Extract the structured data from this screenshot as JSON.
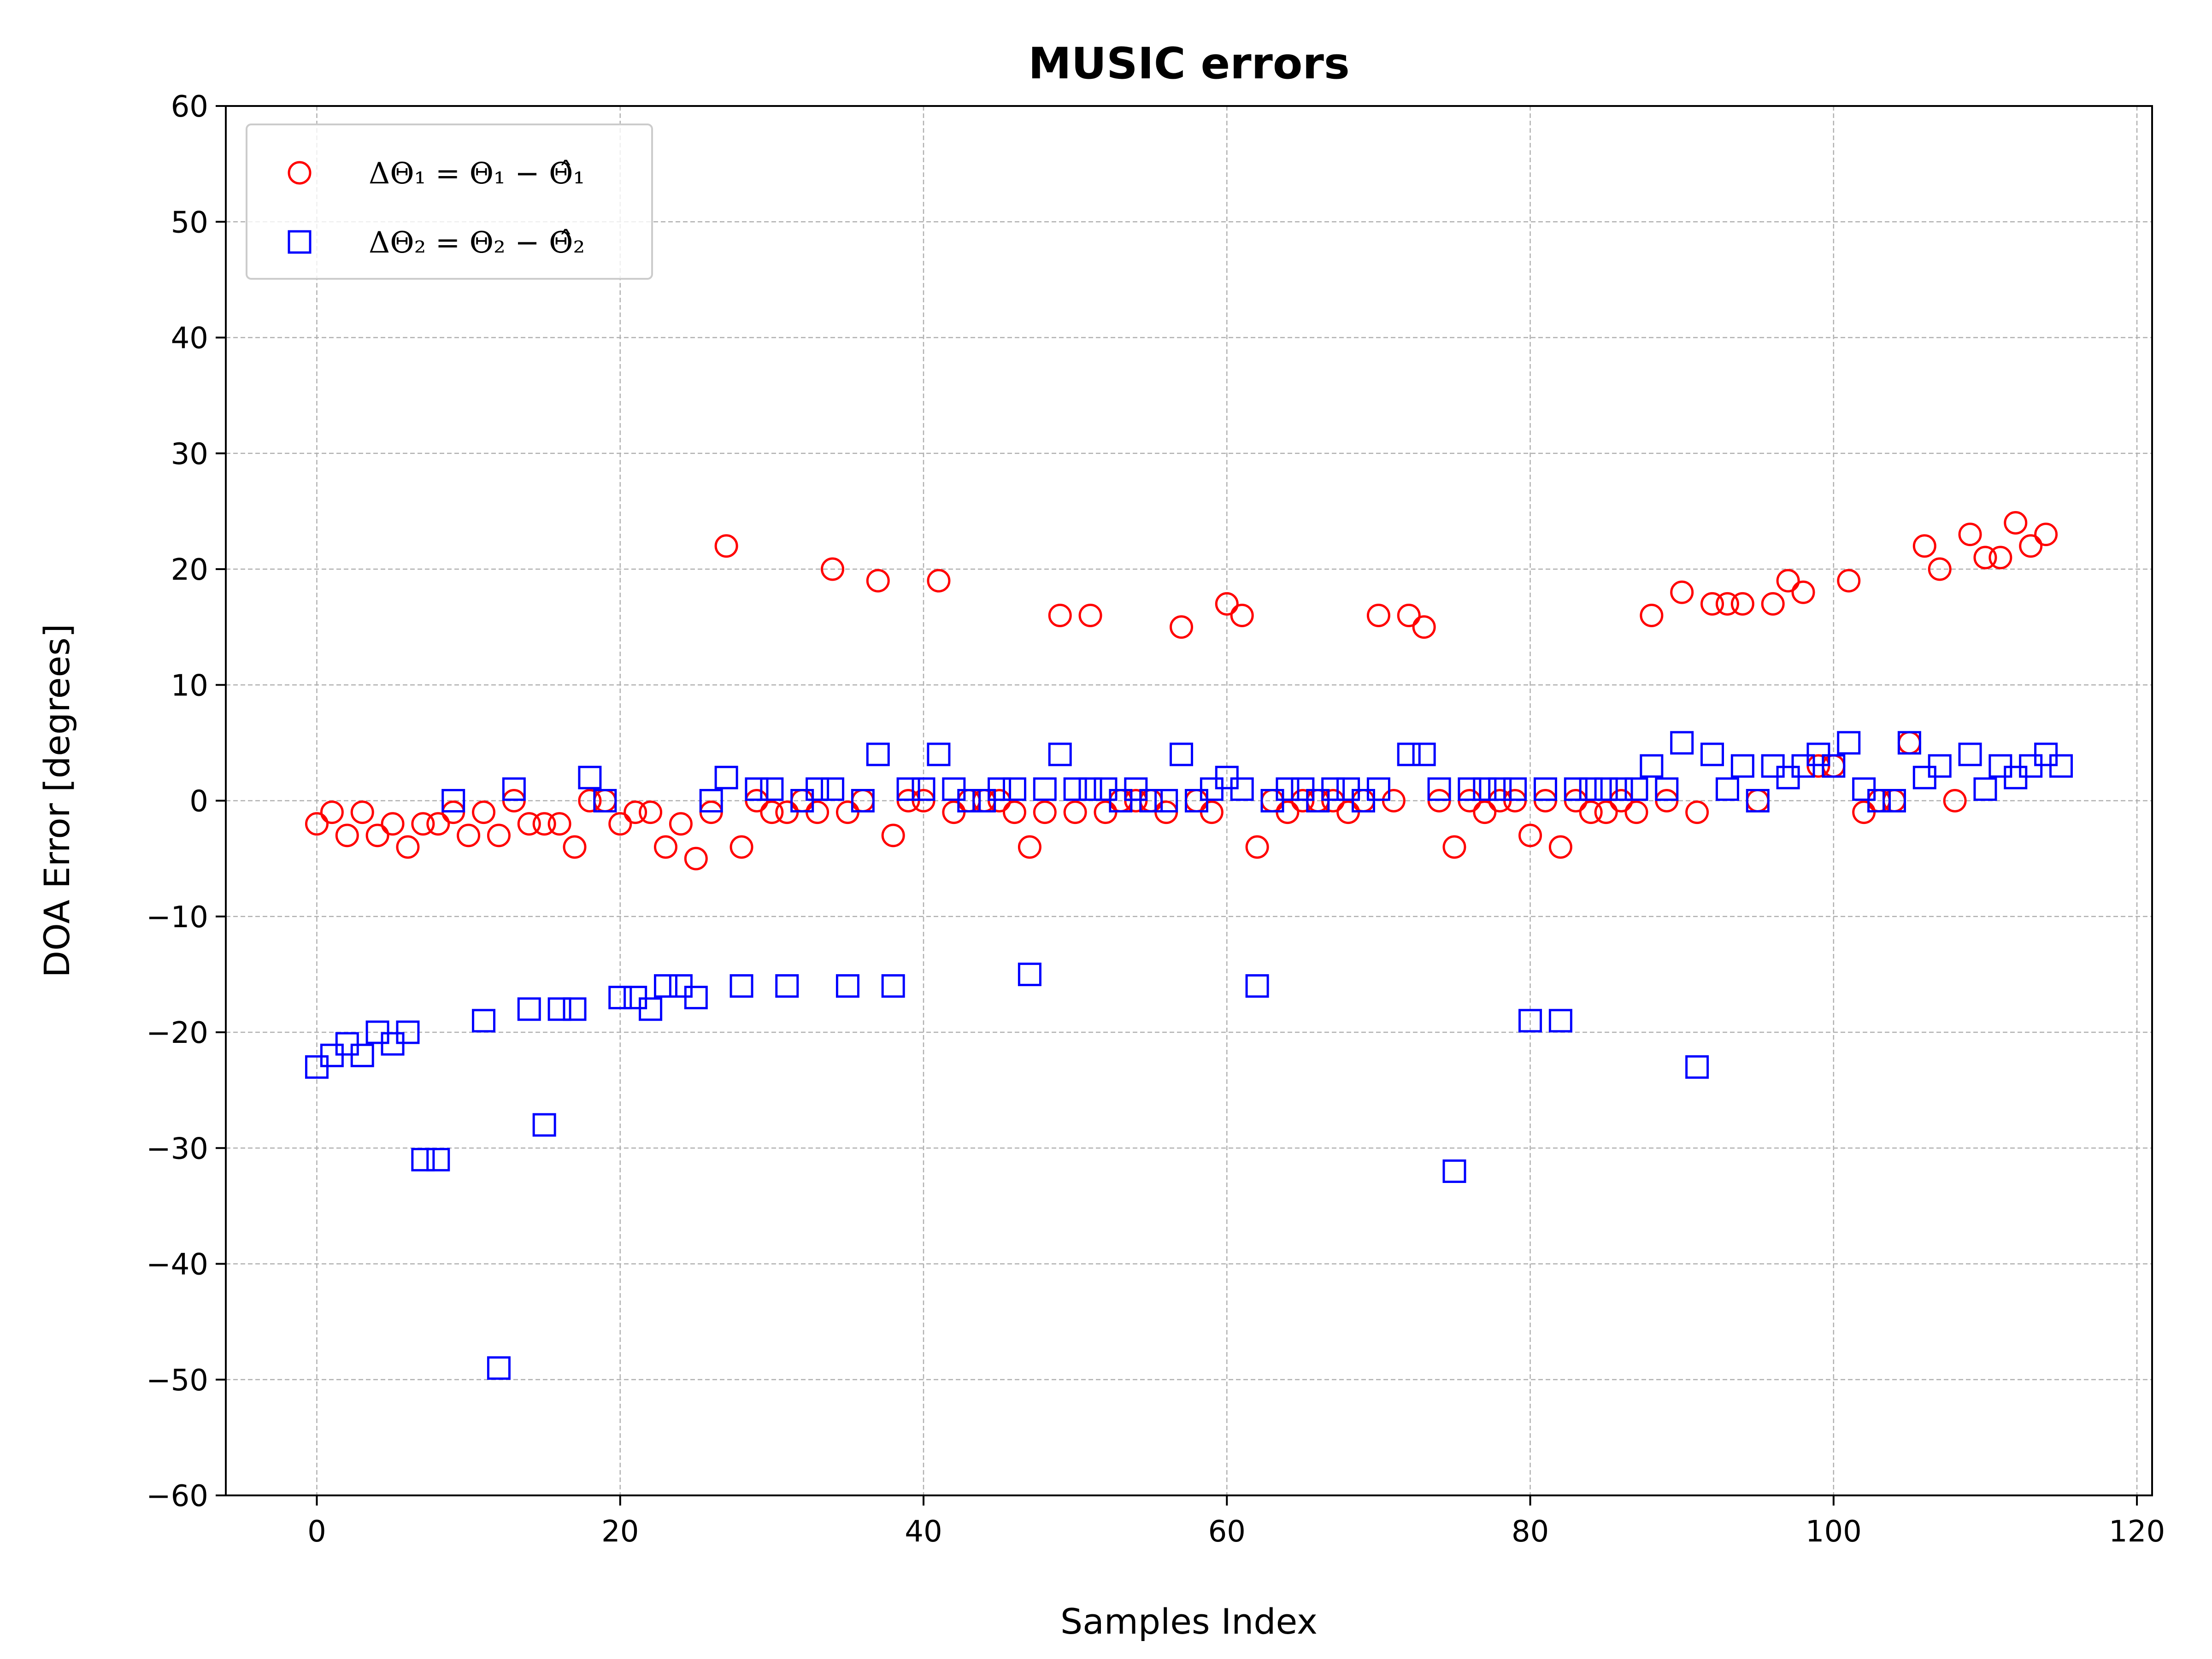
{
  "chart_data": {
    "type": "scatter",
    "title": "MUSIC errors",
    "xlabel": "Samples Index",
    "ylabel": "DOA Error [degrees]",
    "xlim": [
      -6,
      121
    ],
    "ylim": [
      -60,
      60
    ],
    "xticks": [
      0,
      20,
      40,
      60,
      80,
      100,
      120
    ],
    "xtick_labels": [
      "0",
      "20",
      "40",
      "60",
      "80",
      "100",
      "120"
    ],
    "yticks": [
      -60,
      -50,
      -40,
      -30,
      -20,
      -10,
      0,
      10,
      20,
      30,
      40,
      50,
      60
    ],
    "ytick_labels": [
      "−60",
      "−50",
      "−40",
      "−30",
      "−20",
      "−10",
      "0",
      "10",
      "20",
      "30",
      "40",
      "50",
      "60"
    ],
    "grid": true,
    "legend_position": "top-left",
    "series": [
      {
        "name": "ΔΘ₁ = Θ₁ − Θ̂₁",
        "marker": "circle",
        "color": "#ff0000",
        "x": [
          0,
          1,
          2,
          3,
          4,
          5,
          6,
          7,
          8,
          9,
          10,
          11,
          12,
          13,
          14,
          15,
          16,
          17,
          18,
          19,
          20,
          21,
          22,
          23,
          24,
          25,
          26,
          27,
          28,
          29,
          30,
          31,
          32,
          33,
          34,
          35,
          36,
          37,
          38,
          39,
          40,
          41,
          42,
          43,
          44,
          45,
          46,
          47,
          48,
          49,
          50,
          51,
          52,
          53,
          54,
          55,
          56,
          57,
          58,
          59,
          60,
          61,
          62,
          63,
          64,
          65,
          66,
          67,
          68,
          69,
          70,
          71,
          72,
          73,
          74,
          75,
          76,
          77,
          78,
          79,
          80,
          81,
          82,
          83,
          84,
          85,
          86,
          87,
          88,
          89,
          90,
          91,
          92,
          93,
          94,
          95,
          96,
          97,
          98,
          99,
          100,
          101,
          102,
          103,
          104,
          105,
          106,
          107,
          108,
          109,
          110,
          111,
          112,
          113,
          114
        ],
        "y": [
          -2,
          -1,
          -3,
          -1,
          -3,
          -2,
          -4,
          -2,
          -2,
          -1,
          -3,
          -1,
          -3,
          0,
          -2,
          -2,
          -2,
          -4,
          0,
          0,
          -2,
          -1,
          -1,
          -4,
          -2,
          -5,
          -1,
          22,
          -4,
          0,
          -1,
          -1,
          0,
          -1,
          20,
          -1,
          0,
          19,
          -3,
          0,
          0,
          19,
          -1,
          0,
          0,
          0,
          -1,
          -4,
          -1,
          16,
          -1,
          16,
          -1,
          0,
          0,
          0,
          -1,
          15,
          0,
          -1,
          17,
          16,
          -4,
          0,
          -1,
          0,
          0,
          0,
          -1,
          0,
          16,
          0,
          16,
          15,
          0,
          -4,
          0,
          -1,
          0,
          0,
          -3,
          0,
          -4,
          0,
          -1,
          -1,
          0,
          -1,
          16,
          0,
          18,
          -1,
          17,
          17,
          17,
          0,
          17,
          19,
          18,
          3,
          3,
          19,
          -1,
          0,
          0,
          5,
          22,
          20,
          0,
          23,
          21,
          21,
          24,
          22,
          23
        ]
      },
      {
        "name": "ΔΘ₂ = Θ₂ − Θ̂₂",
        "marker": "square",
        "color": "#0000ff",
        "x": [
          0,
          1,
          2,
          3,
          4,
          5,
          6,
          7,
          8,
          9,
          11,
          12,
          13,
          14,
          15,
          16,
          17,
          18,
          19,
          20,
          21,
          22,
          23,
          24,
          25,
          26,
          27,
          28,
          29,
          30,
          31,
          32,
          33,
          34,
          35,
          36,
          37,
          38,
          39,
          40,
          41,
          42,
          43,
          44,
          45,
          46,
          47,
          48,
          49,
          50,
          51,
          52,
          53,
          54,
          55,
          56,
          57,
          58,
          59,
          60,
          61,
          62,
          63,
          64,
          65,
          66,
          67,
          68,
          69,
          70,
          72,
          73,
          74,
          75,
          76,
          77,
          78,
          79,
          80,
          81,
          82,
          83,
          84,
          85,
          86,
          87,
          88,
          89,
          90,
          91,
          92,
          93,
          94,
          95,
          96,
          97,
          98,
          99,
          100,
          101,
          102,
          103,
          104,
          105,
          106,
          107,
          109,
          110,
          111,
          112,
          113,
          114,
          115
        ],
        "y": [
          -23,
          -22,
          -21,
          -22,
          -20,
          -21,
          -20,
          -31,
          -31,
          0,
          -19,
          -49,
          1,
          -18,
          -28,
          -18,
          -18,
          2,
          0,
          -17,
          -17,
          -18,
          -16,
          -16,
          -17,
          0,
          2,
          -16,
          1,
          1,
          -16,
          0,
          1,
          1,
          -16,
          0,
          4,
          -16,
          1,
          1,
          4,
          1,
          0,
          0,
          1,
          1,
          -15,
          1,
          4,
          1,
          1,
          1,
          0,
          1,
          0,
          0,
          4,
          0,
          1,
          2,
          1,
          -16,
          0,
          1,
          1,
          0,
          1,
          1,
          0,
          1,
          4,
          4,
          1,
          -32,
          1,
          1,
          1,
          1,
          -19,
          1,
          -19,
          1,
          1,
          1,
          1,
          1,
          3,
          1,
          5,
          -23,
          4,
          1,
          3,
          0,
          3,
          2,
          3,
          4,
          3,
          5,
          1,
          0,
          0,
          5,
          2,
          3,
          4,
          1,
          3,
          2,
          3,
          4,
          3
        ]
      }
    ]
  }
}
